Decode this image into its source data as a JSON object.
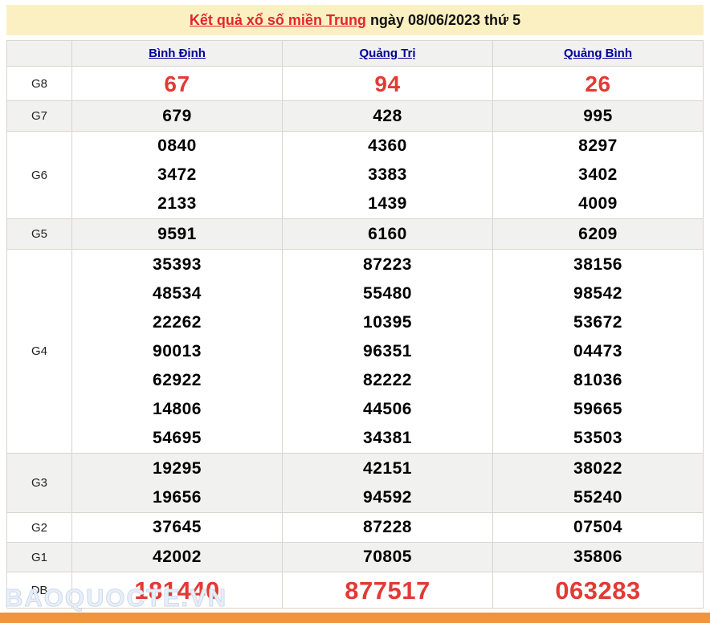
{
  "header": {
    "title_link": "Kết quả xổ số miền Trung",
    "title_rest": " ngày 08/06/2023 thứ 5"
  },
  "watermark": "BAOQUOCTE.VN",
  "colors": {
    "banner_bg": "#faf0c2",
    "title_red": "#e2262c",
    "link_blue": "#00009c",
    "number_red": "#e23a34",
    "stripe_gray": "#f1f1ef",
    "border_gray": "#d9d5cf",
    "bottom_bar_orange": "#f0943e"
  },
  "table": {
    "columns": [
      "Bình Định",
      "Quảng Trị",
      "Quảng Bình"
    ],
    "rows": [
      {
        "label": "G8",
        "cells": [
          [
            "67"
          ],
          [
            "94"
          ],
          [
            "26"
          ]
        ]
      },
      {
        "label": "G7",
        "cells": [
          [
            "679"
          ],
          [
            "428"
          ],
          [
            "995"
          ]
        ]
      },
      {
        "label": "G6",
        "cells": [
          [
            "0840",
            "3472",
            "2133"
          ],
          [
            "4360",
            "3383",
            "1439"
          ],
          [
            "8297",
            "3402",
            "4009"
          ]
        ]
      },
      {
        "label": "G5",
        "cells": [
          [
            "9591"
          ],
          [
            "6160"
          ],
          [
            "6209"
          ]
        ]
      },
      {
        "label": "G4",
        "cells": [
          [
            "35393",
            "48534",
            "22262",
            "90013",
            "62922",
            "14806",
            "54695"
          ],
          [
            "87223",
            "55480",
            "10395",
            "96351",
            "82222",
            "44506",
            "34381"
          ],
          [
            "38156",
            "98542",
            "53672",
            "04473",
            "81036",
            "59665",
            "53503"
          ]
        ]
      },
      {
        "label": "G3",
        "cells": [
          [
            "19295",
            "19656"
          ],
          [
            "42151",
            "94592"
          ],
          [
            "38022",
            "55240"
          ]
        ]
      },
      {
        "label": "G2",
        "cells": [
          [
            "37645"
          ],
          [
            "87228"
          ],
          [
            "07504"
          ]
        ]
      },
      {
        "label": "G1",
        "cells": [
          [
            "42002"
          ],
          [
            "70805"
          ],
          [
            "35806"
          ]
        ]
      },
      {
        "label": "ĐB",
        "cells": [
          [
            "181440"
          ],
          [
            "877517"
          ],
          [
            "063283"
          ]
        ]
      }
    ]
  }
}
